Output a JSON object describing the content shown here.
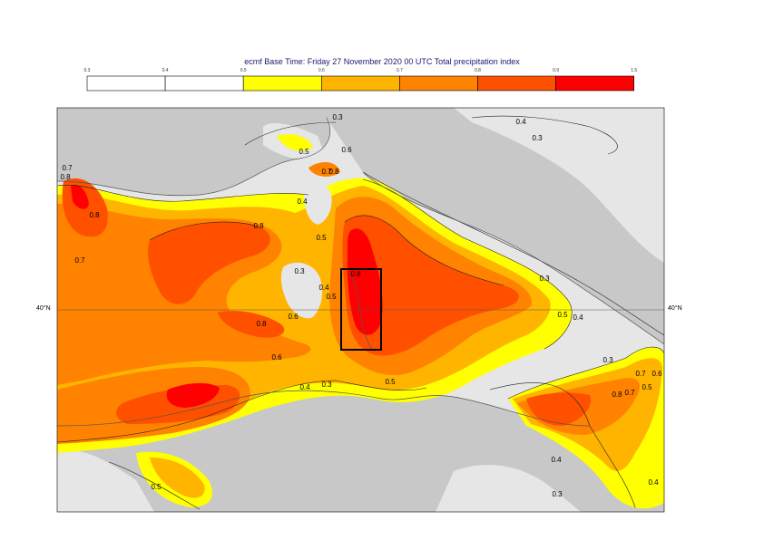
{
  "title": "ecmf  Base Time: Friday 27 November 2020 00 UTC Total precipitation index",
  "legend": {
    "ticks": [
      "0.3",
      "0.4",
      "0.5",
      "0.6",
      "0.7",
      "0.8",
      "0.9",
      "1.5"
    ],
    "colors": [
      "#ffffff",
      "#ffffff",
      "#ffff00",
      "#ffb400",
      "#ff8200",
      "#ff5000",
      "#ff0000"
    ]
  },
  "map": {
    "land_color": "#c8c8c8",
    "sea_color": "#e6e6e6",
    "lat_label_left": "40°N",
    "lat_label_right": "40°N",
    "contour_labels": [
      "0.3",
      "0.4",
      "0.5",
      "0.6",
      "0.7",
      "0.8"
    ]
  }
}
